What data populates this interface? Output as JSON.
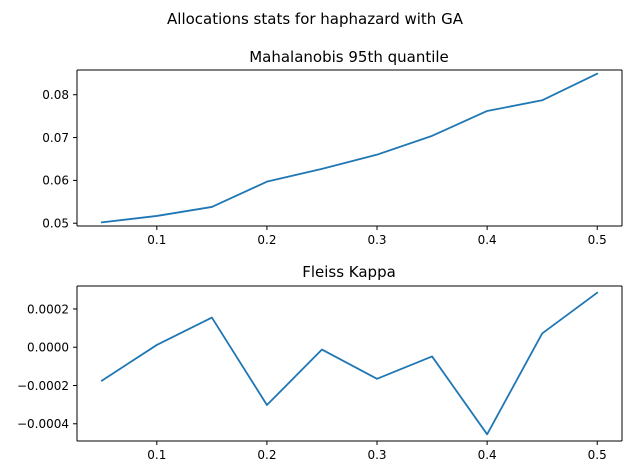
{
  "suptitle": "Allocations stats for haphazard with GA",
  "colors": {
    "series": "#1f77b4"
  },
  "chart_data": [
    {
      "type": "line",
      "title": "Mahalanobis 95th quantile",
      "xlabel": "",
      "ylabel": "",
      "x": [
        0.05,
        0.1,
        0.15,
        0.2,
        0.25,
        0.3,
        0.35,
        0.4,
        0.45,
        0.5
      ],
      "series": [
        {
          "values": [
            0.0502,
            0.0517,
            0.0538,
            0.0597,
            0.0627,
            0.066,
            0.0704,
            0.0762,
            0.0787,
            0.0849
          ]
        }
      ],
      "xlim": [
        0.0275,
        0.5225
      ],
      "ylim": [
        0.04935,
        0.08577
      ],
      "xticks": [
        0.1,
        0.2,
        0.3,
        0.4,
        0.5
      ],
      "xtick_labels": [
        "0.1",
        "0.2",
        "0.3",
        "0.4",
        "0.5"
      ],
      "yticks": [
        0.05,
        0.06,
        0.07,
        0.08
      ],
      "ytick_labels": [
        "0.05",
        "0.06",
        "0.07",
        "0.08"
      ],
      "grid": false
    },
    {
      "type": "line",
      "title": "Fleiss Kappa",
      "xlabel": "",
      "ylabel": "",
      "x": [
        0.05,
        0.1,
        0.15,
        0.2,
        0.25,
        0.3,
        0.35,
        0.4,
        0.45,
        0.5
      ],
      "series": [
        {
          "values": [
            -0.000175,
            1.2e-05,
            0.000155,
            -0.000302,
            -1.2e-05,
            -0.000165,
            -4.8e-05,
            -0.000455,
            7.2e-05,
            0.000285
          ]
        }
      ],
      "xlim": [
        0.0275,
        0.5225
      ],
      "ylim": [
        -0.00049,
        0.00032
      ],
      "xticks": [
        0.1,
        0.2,
        0.3,
        0.4,
        0.5
      ],
      "xtick_labels": [
        "0.1",
        "0.2",
        "0.3",
        "0.4",
        "0.5"
      ],
      "yticks": [
        -0.0004,
        -0.0002,
        0.0,
        0.0002
      ],
      "ytick_labels": [
        "−0.0004",
        "−0.0002",
        "0.0000",
        "0.0002"
      ],
      "grid": false
    }
  ]
}
